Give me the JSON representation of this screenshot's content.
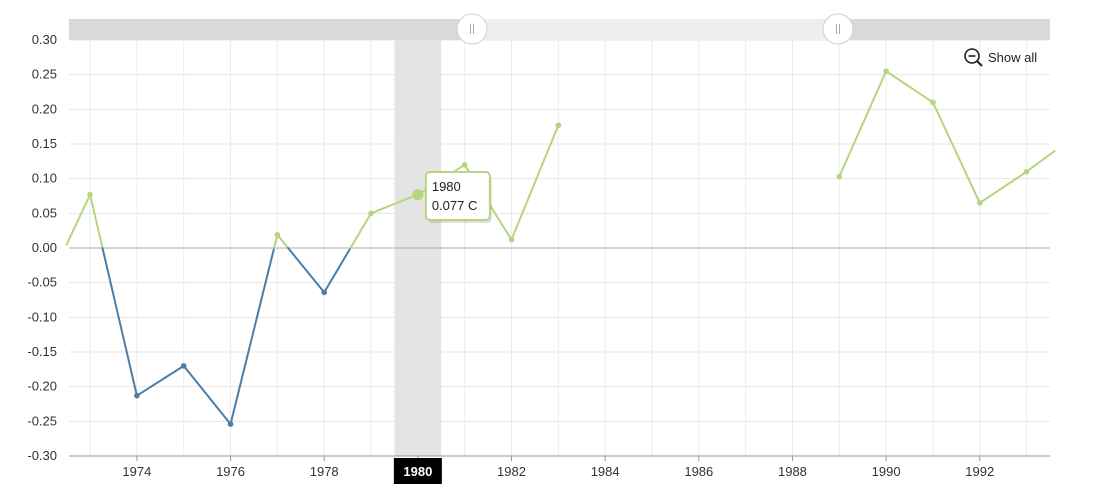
{
  "chart_data": {
    "type": "line",
    "x_label": "",
    "y_label": "",
    "xlim": [
      1972.55,
      1993.5
    ],
    "ylim": [
      -0.3,
      0.3
    ],
    "y_ticks": [
      "0.30",
      "0.25",
      "0.20",
      "0.15",
      "0.10",
      "0.05",
      "0.00",
      "-0.05",
      "-0.10",
      "-0.15",
      "-0.20",
      "-0.25",
      "-0.30"
    ],
    "x_ticks": [
      "1974",
      "1976",
      "1978",
      "1980",
      "1982",
      "1984",
      "1986",
      "1988",
      "1990",
      "1992"
    ],
    "grid": true,
    "series": [
      {
        "values": [
          {
            "x": 1972.5,
            "y": 0.005
          },
          {
            "x": 1973.0,
            "y": 0.077
          },
          {
            "x": 1974.0,
            "y": -0.213
          },
          {
            "x": 1975.0,
            "y": -0.17
          },
          {
            "x": 1976.0,
            "y": -0.254
          },
          {
            "x": 1977.0,
            "y": 0.019
          },
          {
            "x": 1978.0,
            "y": -0.064
          },
          {
            "x": 1979.0,
            "y": 0.05
          },
          {
            "x": 1980.0,
            "y": 0.077
          },
          {
            "x": 1981.0,
            "y": 0.12
          },
          {
            "x": 1982.0,
            "y": 0.012
          },
          {
            "x": 1983.0,
            "y": 0.177
          },
          {
            "x": 1989.0,
            "y": 0.103
          },
          {
            "x": 1990.0,
            "y": 0.255
          },
          {
            "x": 1991.0,
            "y": 0.21
          },
          {
            "x": 1992.0,
            "y": 0.065
          },
          {
            "x": 1993.0,
            "y": 0.11
          },
          {
            "x": 1993.6,
            "y": 0.14
          }
        ]
      }
    ],
    "positive_color": "#b5d57f",
    "negative_color": "#4a7ea8",
    "cursor": {
      "x": 1980,
      "label": "1980"
    },
    "tooltip": {
      "year": "1980",
      "value": "0.077 C"
    }
  },
  "controls": {
    "show_all_label": "Show all",
    "zoom_out_icon": "zoom-out-icon",
    "scrollbar_range": [
      1980,
      1988
    ]
  }
}
